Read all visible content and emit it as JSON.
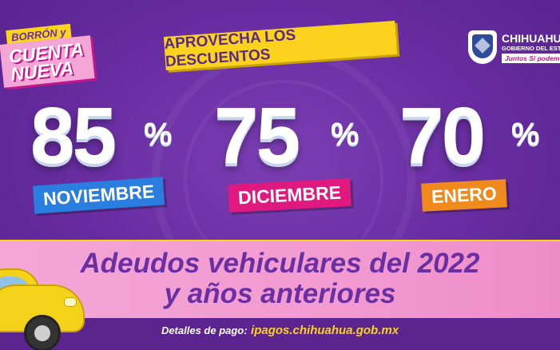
{
  "campaign": {
    "line1": "BORRÓN y",
    "line2": "CUENTA",
    "line3": "NUEVA"
  },
  "slogan": "APROVECHA LOS DESCUENTOS",
  "logo": {
    "name": "CHIHUAHU",
    "subtitle": "GOBIERNO DEL EST",
    "tagline": "Juntos Sí podem"
  },
  "discounts": [
    {
      "value": "85",
      "symbol": "%",
      "month": "NOVIEMBRE",
      "color": "#2a7ee0"
    },
    {
      "value": "75",
      "symbol": "%",
      "month": "DICIEMBRE",
      "color": "#e0197f"
    },
    {
      "value": "70",
      "symbol": "%",
      "month": "ENERO",
      "color": "#f08a1c"
    }
  ],
  "headline": {
    "line1": "Adeudos vehiculares del 2022",
    "line2": "y años anteriores"
  },
  "footer": {
    "label": "Detalles de pago:",
    "url": "ipagos.chihuahua.gob.mx"
  },
  "colors": {
    "background": "#6a2fa3",
    "accent": "#fbd21e",
    "band": "#f3a6d6"
  },
  "icons": {
    "car": "yellow-car-icon",
    "shield": "state-shield-icon"
  }
}
